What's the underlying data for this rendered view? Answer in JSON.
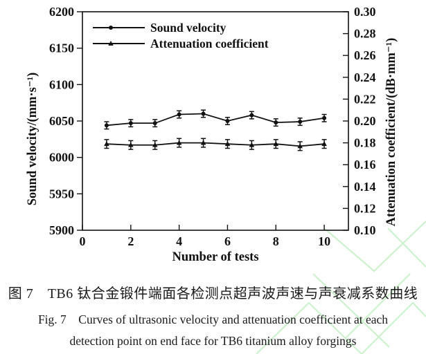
{
  "colors": {
    "line": "#111111",
    "text": "#1a1a1a",
    "background": "#ffffff",
    "watermark": "#a5e6a5"
  },
  "caption": {
    "zh": "图 7　TB6 钛合金锻件端面各检测点超声波声速与声衰减系数曲线",
    "en_line1": "Fig. 7　Curves of ultrasonic velocity and attenuation coefficient at each",
    "en_line2": "detection point on end face for TB6 titanium alloy forgings"
  },
  "chart_data": {
    "type": "line",
    "x": [
      1,
      2,
      3,
      4,
      5,
      6,
      7,
      8,
      9,
      10
    ],
    "xlabel": "Number of tests",
    "xlim": [
      0,
      11
    ],
    "xticks": [
      0,
      2,
      4,
      6,
      8,
      10
    ],
    "xtick_labels": [
      "0",
      "2",
      "4",
      "6",
      "8",
      "10"
    ],
    "grid": false,
    "legend_position": "top-left",
    "left_axis": {
      "label": "Sound velocity/(mm·s⁻¹)",
      "lim": [
        5900,
        6200
      ],
      "ticks": [
        5900,
        5950,
        6000,
        6050,
        6100,
        6150,
        6200
      ],
      "tick_labels": [
        "5900",
        "5950",
        "6000",
        "6050",
        "6100",
        "6150",
        "6200"
      ]
    },
    "right_axis": {
      "label": "Attenuation coefficient/(dB·mm⁻¹)",
      "lim": [
        0.1,
        0.3
      ],
      "ticks": [
        0.1,
        0.12,
        0.14,
        0.16,
        0.18,
        0.2,
        0.22,
        0.24,
        0.26,
        0.28,
        0.3
      ],
      "tick_labels": [
        "0.10",
        "0.12",
        "0.14",
        "0.16",
        "0.18",
        "0.20",
        "0.22",
        "0.24",
        "0.26",
        "0.28",
        "0.30"
      ]
    },
    "series": [
      {
        "name": "Sound velocity",
        "axis": "left",
        "marker": "circle",
        "values": [
          6044,
          6047,
          6047,
          6059,
          6060,
          6050,
          6058,
          6048,
          6049,
          6054
        ],
        "error": 5
      },
      {
        "name": "Attenuation coefficient",
        "axis": "right",
        "marker": "triangle",
        "values": [
          0.179,
          0.178,
          0.178,
          0.18,
          0.18,
          0.179,
          0.178,
          0.179,
          0.177,
          0.179
        ],
        "error": 0.004
      }
    ]
  }
}
